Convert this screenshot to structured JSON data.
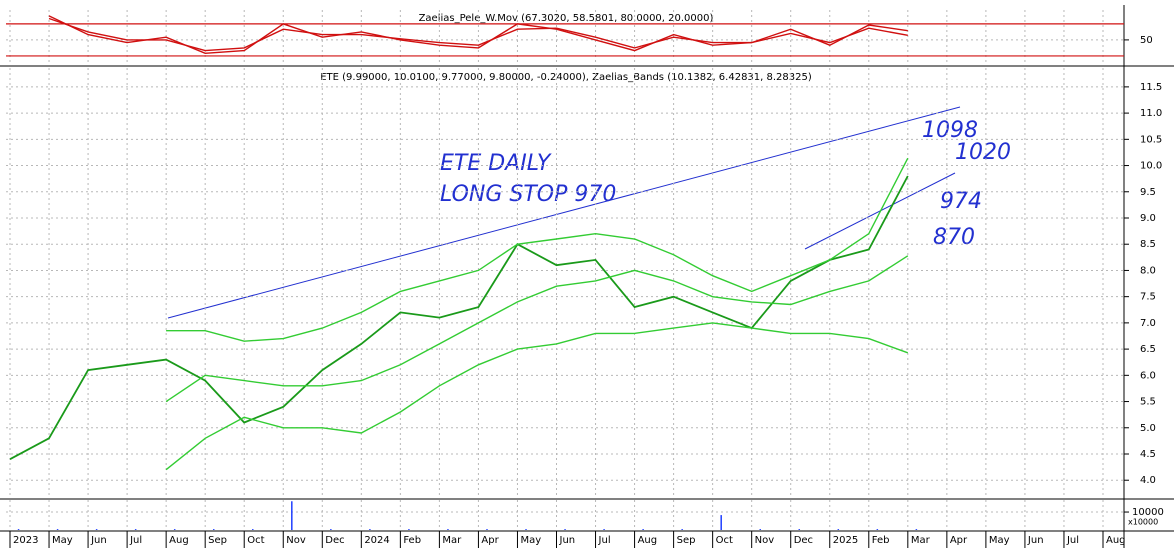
{
  "chart_data": [
    {
      "type": "line",
      "title": "Zaelias_Pele_W.Mov (67.3020, 58.5801, 80.0000, 20.0000)",
      "ylim": [
        3,
        106
      ],
      "yticks": [
        50
      ],
      "levels": [
        80,
        20
      ],
      "level_color": "#d01010",
      "grid": true,
      "series": [
        {
          "name": "fast",
          "color": "#d01010",
          "values": [
            null,
            95,
            60,
            45,
            55,
            25,
            30,
            80,
            55,
            65,
            50,
            40,
            35,
            80,
            70,
            50,
            30,
            60,
            40,
            45,
            70,
            40,
            78,
            67.3,
            null,
            null,
            null,
            null,
            null
          ]
        },
        {
          "name": "slow",
          "color": "#d01010",
          "values": [
            null,
            90,
            65,
            50,
            50,
            30,
            35,
            70,
            60,
            60,
            52,
            45,
            40,
            70,
            72,
            55,
            35,
            55,
            45,
            45,
            62,
            45,
            72,
            58.58,
            null,
            null,
            null,
            null,
            null
          ]
        }
      ]
    },
    {
      "type": "line",
      "title": "ETE (9.99000, 10.0100, 9.77000, 9.80000, -0.24000), Zaelias_Bands (10.1382, 6.42831, 8.28325)",
      "ylim": [
        3.68,
        11.86
      ],
      "grid": true,
      "yticks": [
        {
          "value": 4,
          "label": "4.0"
        },
        4.5,
        {
          "value": 5,
          "label": "5.0"
        },
        5.5,
        {
          "value": 6,
          "label": "6.0"
        },
        6.5,
        {
          "value": 7,
          "label": "7.0"
        },
        7.5,
        {
          "value": 8,
          "label": "8.0"
        },
        8.5,
        {
          "value": 9,
          "label": "9.0"
        },
        9.5,
        {
          "value": 10,
          "label": "10.0"
        },
        10.5,
        {
          "value": 11,
          "label": "11.0"
        },
        11.5
      ],
      "series": [
        {
          "name": "ETE",
          "color": "#1a9a1a",
          "values": [
            4.4,
            4.8,
            6.1,
            6.2,
            6.3,
            5.9,
            5.1,
            5.4,
            6.1,
            6.6,
            7.2,
            7.1,
            7.3,
            8.5,
            8.1,
            8.2,
            7.3,
            7.5,
            7.2,
            6.9,
            7.8,
            8.2,
            8.4,
            9.8,
            null,
            null,
            null,
            null,
            null
          ]
        },
        {
          "name": "upper",
          "color": "#33cc33",
          "values": [
            null,
            null,
            null,
            null,
            6.85,
            6.85,
            6.65,
            6.7,
            6.9,
            7.2,
            7.6,
            7.8,
            8.0,
            8.5,
            8.6,
            8.7,
            8.6,
            8.3,
            7.9,
            7.6,
            7.9,
            8.2,
            8.7,
            10.14,
            null,
            null,
            null,
            null,
            null
          ]
        },
        {
          "name": "middle",
          "color": "#33cc33",
          "values": [
            null,
            null,
            null,
            null,
            5.5,
            6.0,
            5.9,
            5.8,
            5.8,
            5.9,
            6.2,
            6.6,
            7.0,
            7.4,
            7.7,
            7.8,
            8.0,
            7.8,
            7.5,
            7.4,
            7.35,
            7.6,
            7.8,
            8.28,
            null,
            null,
            null,
            null,
            null
          ]
        },
        {
          "name": "lower",
          "color": "#33cc33",
          "values": [
            null,
            null,
            null,
            null,
            4.2,
            4.8,
            5.2,
            5.0,
            5.0,
            4.9,
            5.3,
            5.8,
            6.2,
            6.5,
            6.6,
            6.8,
            6.8,
            6.9,
            7.0,
            6.9,
            6.8,
            6.8,
            6.7,
            6.43,
            null,
            null,
            null,
            null,
            null
          ]
        }
      ]
    },
    {
      "type": "bar",
      "ylim": [
        0,
        16700
      ],
      "yticks": [
        10000
      ],
      "unit_label": "x10000",
      "color": "#2040ff",
      "grid": true,
      "categories": [
        "2023",
        "May",
        "Jun",
        "Jul",
        "Aug",
        "Sep",
        "Oct",
        "Nov",
        "Dec",
        "2024",
        "Feb",
        "Mar",
        "Apr",
        "May",
        "Jun",
        "Jul",
        "Aug",
        "Sep",
        "Oct",
        "Nov",
        "Dec",
        "2025",
        "Feb",
        "Mar",
        "Apr",
        "May",
        "Jun",
        "Jul",
        "Aug"
      ],
      "values": [
        500,
        500,
        500,
        500,
        500,
        500,
        500,
        16000,
        500,
        500,
        500,
        500,
        500,
        500,
        500,
        500,
        500,
        500,
        8300,
        500,
        500,
        500,
        500,
        500,
        null,
        null,
        null,
        null,
        null
      ]
    }
  ],
  "annotations": [
    "ETE DAILY",
    "LONG STOP 970",
    "1098",
    "1020",
    "974",
    "870"
  ]
}
